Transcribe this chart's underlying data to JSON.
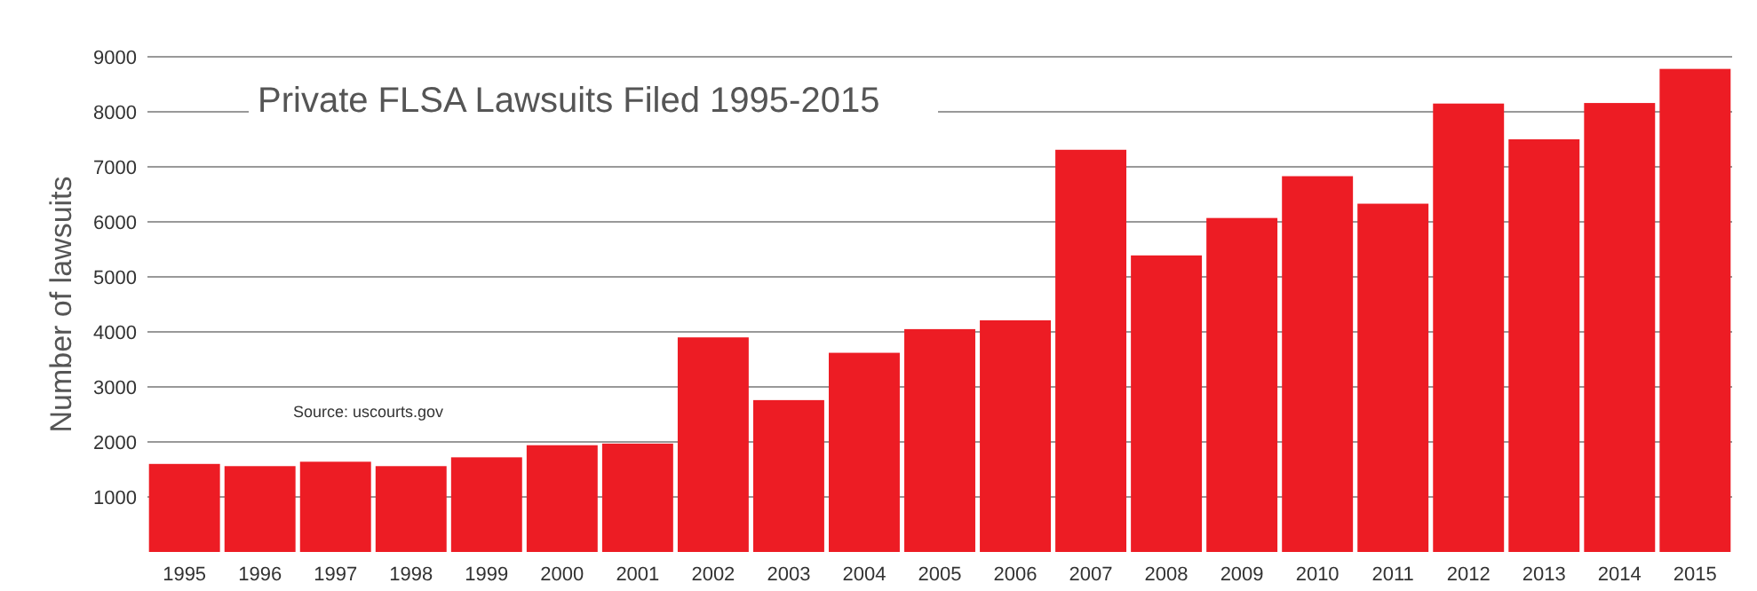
{
  "chart_data": {
    "type": "bar",
    "title": "Private FLSA Lawsuits Filed 1995-2015",
    "ylabel": "Number of lawsuits",
    "annotations": [
      "Source: uscourts.gov"
    ],
    "categories": [
      "1995",
      "1996",
      "1997",
      "1998",
      "1999",
      "2000",
      "2001",
      "2002",
      "2003",
      "2004",
      "2005",
      "2006",
      "2007",
      "2008",
      "2009",
      "2010",
      "2011",
      "2012",
      "2013",
      "2014",
      "2015"
    ],
    "values": [
      1600,
      1560,
      1640,
      1560,
      1720,
      1940,
      1970,
      3900,
      2760,
      3620,
      4050,
      4210,
      7310,
      5390,
      6070,
      6830,
      6330,
      8150,
      7500,
      8160,
      8780
    ],
    "color": "#ed1c24",
    "ylim": [
      0,
      9000
    ],
    "yticks": [
      1000,
      2000,
      3000,
      4000,
      5000,
      6000,
      7000,
      8000,
      9000
    ],
    "grid": "y"
  }
}
